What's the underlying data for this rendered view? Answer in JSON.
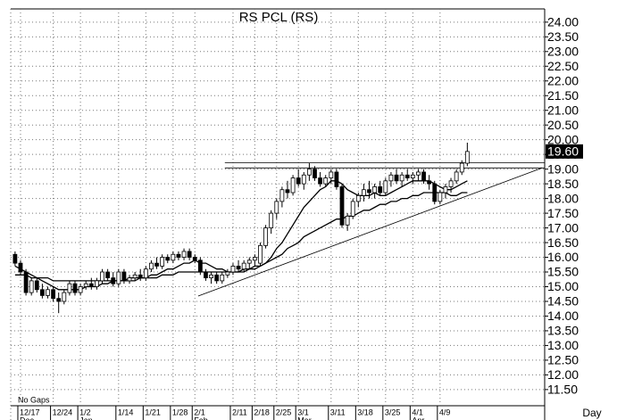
{
  "chart_data": {
    "type": "candlestick",
    "title": "RS  PCL  (RS)",
    "annotation": "No Gaps",
    "x_unit_label": "Day",
    "up_color": "#ffffff",
    "down_color": "#000000",
    "grid": true,
    "categories": [
      null,
      "12/17",
      null,
      null,
      null,
      null,
      null,
      "12/24",
      null,
      null,
      null,
      null,
      "1/2",
      null,
      null,
      null,
      null,
      null,
      null,
      "1/14",
      null,
      null,
      null,
      null,
      "1/21",
      null,
      null,
      null,
      null,
      "1/28",
      null,
      null,
      null,
      "2/1",
      null,
      null,
      null,
      null,
      null,
      null,
      "2/11",
      null,
      null,
      null,
      "2/18",
      null,
      null,
      null,
      "2/25",
      null,
      null,
      null,
      "3/1",
      null,
      null,
      null,
      null,
      null,
      "3/11",
      null,
      null,
      null,
      null,
      "3/18",
      null,
      null,
      null,
      null,
      "3/25",
      null,
      null,
      null,
      null,
      "4/1",
      null,
      null,
      null,
      null,
      "4/9",
      null,
      null,
      null,
      null,
      null
    ],
    "months": [
      null,
      "Dec",
      null,
      null,
      null,
      null,
      null,
      null,
      null,
      null,
      null,
      null,
      "Jan",
      null,
      null,
      null,
      null,
      null,
      null,
      null,
      null,
      null,
      null,
      null,
      null,
      null,
      null,
      null,
      null,
      null,
      null,
      null,
      null,
      "Feb",
      null,
      null,
      null,
      null,
      null,
      null,
      null,
      null,
      null,
      null,
      null,
      null,
      null,
      null,
      null,
      null,
      null,
      null,
      "Mar",
      null,
      null,
      null,
      null,
      null,
      null,
      null,
      null,
      null,
      null,
      null,
      null,
      null,
      null,
      null,
      null,
      null,
      null,
      null,
      null,
      "Apr",
      null,
      null,
      null,
      null,
      null,
      null,
      null,
      null,
      null,
      null
    ],
    "open": [
      16.1,
      15.8,
      15.5,
      14.8,
      15.2,
      14.9,
      14.7,
      14.9,
      14.6,
      14.5,
      14.8,
      15.1,
      14.8,
      15.0,
      15.1,
      15.0,
      15.2,
      15.5,
      15.3,
      15.1,
      15.5,
      15.2,
      15.3,
      15.4,
      15.3,
      15.6,
      15.8,
      15.7,
      16.0,
      15.9,
      16.1,
      16.0,
      16.2,
      16.0,
      15.9,
      15.5,
      15.3,
      15.4,
      15.2,
      15.4,
      15.5,
      15.7,
      15.6,
      15.8,
      15.9,
      15.8,
      16.4,
      17.0,
      17.5,
      17.9,
      18.3,
      18.2,
      18.7,
      18.5,
      18.8,
      19.0,
      18.7,
      18.5,
      18.7,
      18.9,
      18.4,
      17.1,
      17.4,
      17.9,
      18.1,
      18.3,
      18.2,
      18.4,
      18.2,
      18.6,
      18.8,
      18.6,
      18.8,
      18.7,
      18.8,
      18.9,
      18.6,
      18.5,
      17.9,
      18.2,
      18.4,
      18.6,
      18.9,
      19.2
    ],
    "high": [
      16.2,
      15.9,
      15.6,
      15.3,
      15.3,
      15.1,
      15.0,
      15.0,
      14.8,
      14.9,
      15.2,
      15.2,
      15.1,
      15.2,
      15.3,
      15.3,
      15.6,
      15.6,
      15.5,
      15.6,
      15.6,
      15.4,
      15.5,
      15.6,
      15.7,
      15.9,
      16.0,
      16.1,
      16.1,
      16.2,
      16.2,
      16.3,
      16.3,
      16.1,
      16.0,
      15.6,
      15.5,
      15.5,
      15.5,
      15.6,
      15.8,
      15.9,
      15.9,
      16.0,
      16.1,
      16.5,
      17.1,
      17.6,
      18.0,
      18.4,
      18.6,
      18.8,
      19.0,
      18.9,
      19.2,
      19.1,
      18.9,
      18.8,
      19.0,
      19.0,
      18.5,
      17.5,
      18.0,
      18.2,
      18.5,
      18.6,
      18.5,
      18.6,
      18.7,
      18.9,
      19.0,
      18.9,
      19.0,
      18.9,
      19.0,
      19.0,
      18.8,
      18.6,
      18.3,
      18.5,
      18.7,
      19.0,
      19.3,
      19.9
    ],
    "low": [
      15.7,
      15.4,
      14.7,
      14.7,
      14.8,
      14.6,
      14.6,
      14.5,
      14.1,
      14.4,
      14.7,
      14.7,
      14.7,
      14.9,
      14.9,
      14.9,
      15.1,
      15.2,
      15.0,
      15.0,
      15.1,
      15.1,
      15.2,
      15.2,
      15.2,
      15.5,
      15.6,
      15.6,
      15.8,
      15.8,
      15.9,
      15.9,
      15.9,
      15.8,
      15.4,
      15.2,
      15.1,
      15.1,
      15.1,
      15.3,
      15.4,
      15.5,
      15.5,
      15.6,
      15.7,
      15.7,
      16.3,
      16.8,
      17.3,
      17.7,
      18.0,
      18.1,
      18.4,
      18.3,
      18.6,
      18.6,
      18.4,
      18.4,
      18.5,
      18.3,
      17.0,
      16.9,
      17.3,
      17.7,
      17.9,
      18.0,
      18.0,
      18.1,
      18.1,
      18.4,
      18.5,
      18.4,
      18.6,
      18.5,
      18.6,
      18.5,
      18.3,
      17.8,
      17.8,
      18.0,
      18.2,
      18.5,
      18.8,
      19.1
    ],
    "close": [
      15.8,
      15.5,
      14.8,
      15.2,
      14.9,
      14.7,
      14.9,
      14.6,
      14.5,
      14.8,
      15.1,
      14.8,
      15.0,
      15.1,
      15.0,
      15.2,
      15.5,
      15.3,
      15.1,
      15.5,
      15.2,
      15.3,
      15.4,
      15.3,
      15.6,
      15.8,
      15.7,
      16.0,
      15.9,
      16.1,
      16.0,
      16.2,
      16.0,
      15.9,
      15.5,
      15.3,
      15.4,
      15.2,
      15.4,
      15.5,
      15.7,
      15.6,
      15.8,
      15.9,
      16.0,
      16.4,
      17.0,
      17.5,
      17.9,
      18.3,
      18.2,
      18.7,
      18.5,
      18.8,
      19.0,
      18.7,
      18.5,
      18.7,
      18.9,
      18.4,
      17.1,
      17.4,
      17.9,
      18.1,
      18.3,
      18.2,
      18.4,
      18.2,
      18.6,
      18.8,
      18.6,
      18.8,
      18.7,
      18.8,
      18.9,
      18.6,
      18.5,
      17.9,
      18.2,
      18.4,
      18.6,
      18.9,
      19.2,
      19.6
    ],
    "moving_averages": [
      {
        "color": "#000000",
        "values": [
          15.7,
          15.6,
          15.5,
          15.4,
          15.3,
          15.2,
          15.1,
          15.0,
          14.9,
          14.9,
          14.9,
          14.9,
          14.9,
          15.0,
          15.0,
          15.0,
          15.1,
          15.1,
          15.2,
          15.2,
          15.2,
          15.3,
          15.3,
          15.3,
          15.3,
          15.4,
          15.4,
          15.5,
          15.6,
          15.6,
          15.7,
          15.8,
          15.8,
          15.9,
          15.8,
          15.8,
          15.7,
          15.6,
          15.6,
          15.5,
          15.5,
          15.5,
          15.5,
          15.6,
          15.6,
          15.7,
          15.8,
          16.0,
          16.3,
          16.5,
          16.8,
          17.1,
          17.4,
          17.7,
          17.9,
          18.1,
          18.3,
          18.4,
          18.6,
          18.6,
          18.5,
          18.3,
          18.2,
          18.1,
          18.1,
          18.1,
          18.2,
          18.1,
          18.1,
          18.2,
          18.3,
          18.4,
          18.5,
          18.6,
          18.6,
          18.6,
          18.6,
          18.5,
          18.4,
          18.3,
          18.3,
          18.4,
          18.5,
          18.6
        ]
      },
      {
        "color": "#000000",
        "values": [
          15.4,
          15.4,
          15.4,
          15.3,
          15.3,
          15.3,
          15.3,
          15.2,
          15.2,
          15.2,
          15.2,
          15.2,
          15.2,
          15.2,
          15.2,
          15.2,
          15.2,
          15.2,
          15.2,
          15.2,
          15.2,
          15.2,
          15.2,
          15.3,
          15.3,
          15.3,
          15.3,
          15.4,
          15.4,
          15.4,
          15.5,
          15.5,
          15.5,
          15.5,
          15.5,
          15.5,
          15.5,
          15.5,
          15.5,
          15.5,
          15.5,
          15.5,
          15.6,
          15.6,
          15.7,
          15.7,
          15.8,
          15.9,
          16.0,
          16.1,
          16.3,
          16.4,
          16.5,
          16.7,
          16.8,
          16.9,
          17.0,
          17.1,
          17.2,
          17.3,
          17.3,
          17.4,
          17.4,
          17.5,
          17.6,
          17.6,
          17.7,
          17.8,
          17.8,
          17.9,
          17.9,
          18.0,
          18.0,
          18.1,
          18.1,
          18.2,
          18.2,
          18.2,
          18.2,
          18.2,
          18.1,
          18.1,
          18.2,
          18.2
        ]
      }
    ],
    "trendlines": [
      {
        "x": [
          38.5,
          97.2
        ],
        "y": [
          19.22,
          19.22
        ]
      },
      {
        "x": [
          38.5,
          97.2
        ],
        "y": [
          19.04,
          19.04
        ]
      },
      {
        "x": [
          33.6,
          96.7
        ],
        "y": [
          14.68,
          19.04
        ]
      }
    ],
    "last_price": {
      "value": 19.6,
      "label": "19.60"
    },
    "xlim": [
      -0.8,
      97.2
    ],
    "ylim": [
      10.95,
      24.45
    ],
    "yticks": [
      {
        "value": 11.5,
        "label": "11.50"
      },
      {
        "value": 12,
        "label": "12.00"
      },
      {
        "value": 12.5,
        "label": "12.50"
      },
      {
        "value": 13,
        "label": "13.00"
      },
      {
        "value": 13.5,
        "label": "13.50"
      },
      {
        "value": 14,
        "label": "14.00"
      },
      {
        "value": 14.5,
        "label": "14.50"
      },
      {
        "value": 15,
        "label": "15.00"
      },
      {
        "value": 15.5,
        "label": "15.50"
      },
      {
        "value": 16,
        "label": "16.00"
      },
      {
        "value": 16.5,
        "label": "16.50"
      },
      {
        "value": 17,
        "label": "17.00"
      },
      {
        "value": 17.5,
        "label": "17.50"
      },
      {
        "value": 18,
        "label": "18.00"
      },
      {
        "value": 18.5,
        "label": "18.50"
      },
      {
        "value": 19,
        "label": "19.00"
      },
      {
        "value": 19.5,
        "label": "19.50"
      },
      {
        "value": 20,
        "label": "20.00"
      },
      {
        "value": 20.5,
        "label": "20.50"
      },
      {
        "value": 21,
        "label": "21.00"
      },
      {
        "value": 21.5,
        "label": "21.50"
      },
      {
        "value": 22,
        "label": "22.00"
      },
      {
        "value": 22.5,
        "label": "22.50"
      },
      {
        "value": 23,
        "label": "23.00"
      },
      {
        "value": 23.5,
        "label": "23.50"
      },
      {
        "value": 24,
        "label": "24.00"
      }
    ]
  }
}
